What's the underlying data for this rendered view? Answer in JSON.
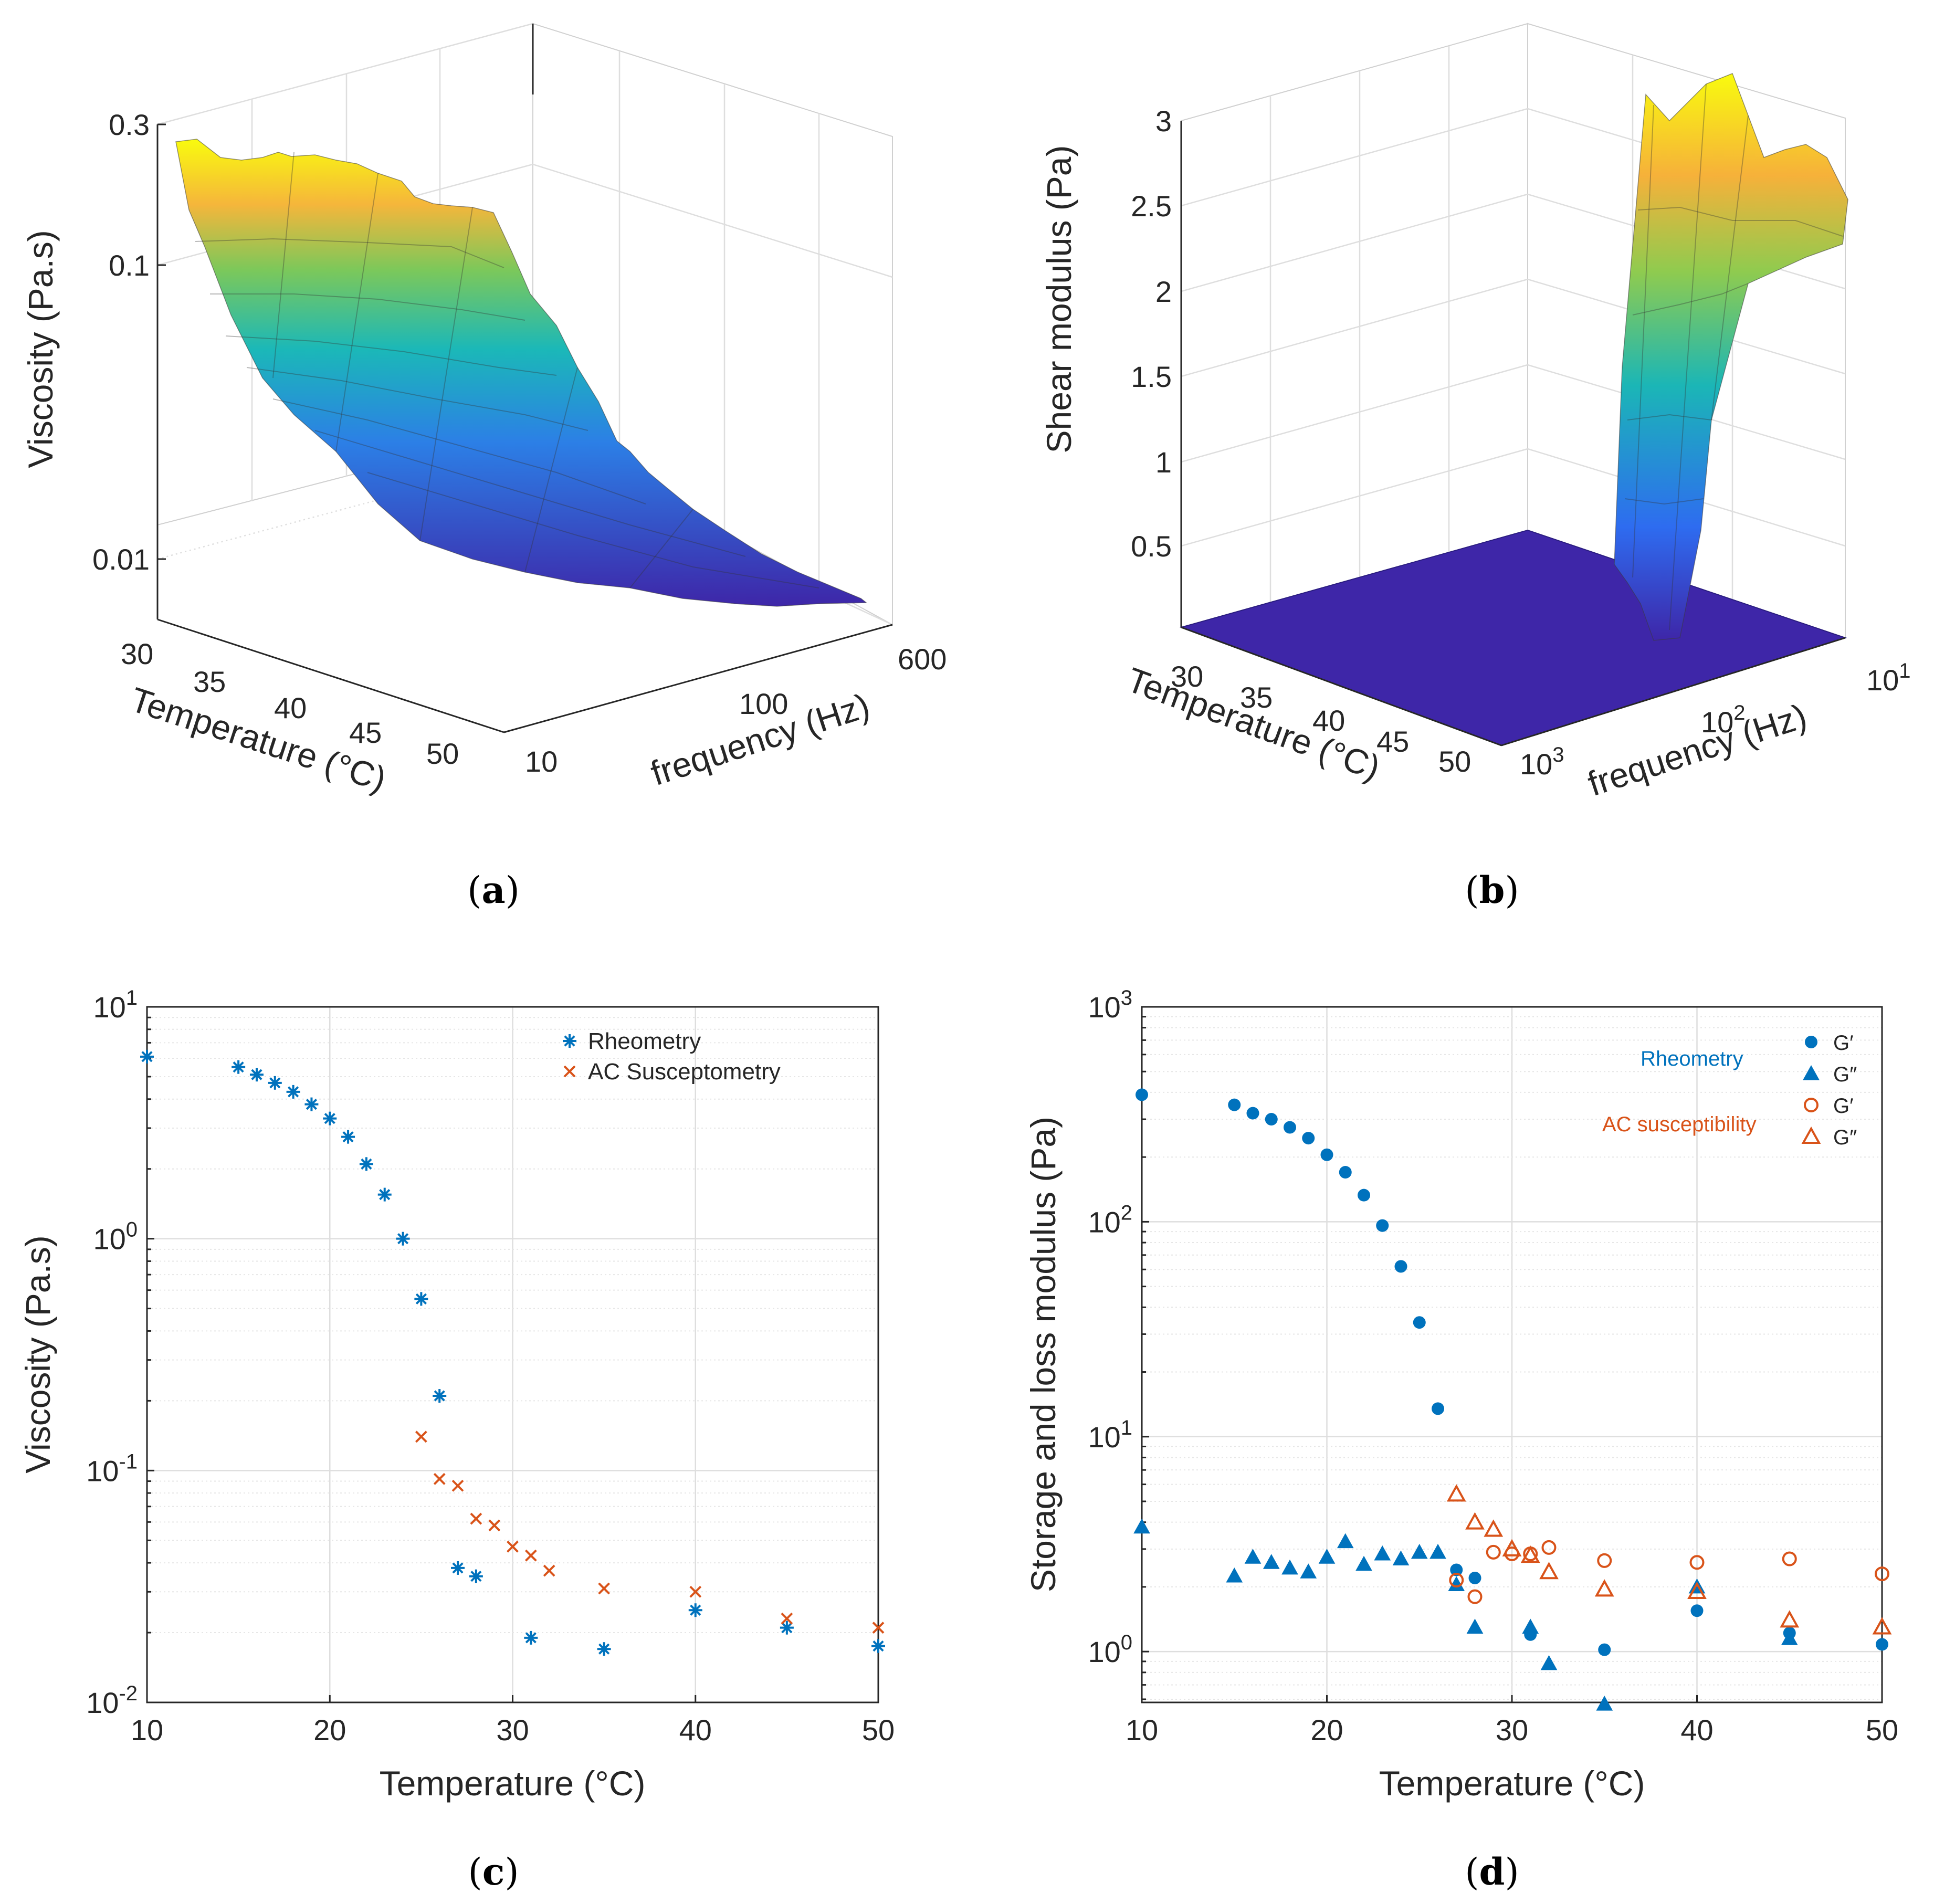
{
  "captions": {
    "a": "(a)",
    "b": "(b)",
    "c": "(c)",
    "d": "(d)"
  },
  "colors": {
    "rheometry": "#0072BD",
    "ac": "#D95319",
    "axis": "#262626",
    "surface_low": "#3E26A8",
    "surface_mid": "#21B8B6",
    "surface_high": "#F9FB0E"
  },
  "chart_data": [
    {
      "panel": "a",
      "type": "surface3d",
      "zlabel": "Viscosity (Pa.s)",
      "xlabel": "Temperature (°C)",
      "ylabel": "frequency (Hz)",
      "z_ticks": [
        "0.3",
        "0.1",
        "0.01"
      ],
      "x_ticks": [
        "30",
        "35",
        "40",
        "45",
        "50"
      ],
      "y_ticks": [
        "10",
        "100",
        "600"
      ],
      "temperature_range": [
        30,
        52
      ],
      "frequency_range": [
        10,
        600
      ],
      "viscosity_range": [
        0.007,
        0.3
      ]
    },
    {
      "panel": "b",
      "type": "surface3d",
      "zlabel": "Shear modulus (Pa)",
      "xlabel": "Temperature (°C)",
      "ylabel": "frequency (Hz)",
      "z_ticks": [
        "3",
        "2.5",
        "2",
        "1.5",
        "1",
        "0.5"
      ],
      "x_ticks": [
        "30",
        "35",
        "40",
        "45",
        "50"
      ],
      "y_ticks": [
        {
          "base": "10",
          "exp": "3"
        },
        {
          "base": "10",
          "exp": "2"
        },
        {
          "base": "10",
          "exp": "1"
        }
      ],
      "shear_modulus_range": [
        0,
        3.1
      ]
    },
    {
      "panel": "c",
      "type": "scatter",
      "xlabel": "Temperature (°C)",
      "ylabel": "Viscosity (Pa.s)",
      "yscale": "log",
      "xlim": [
        10,
        50
      ],
      "ylim": [
        0.01,
        10
      ],
      "x_ticks": [
        "10",
        "20",
        "30",
        "40",
        "50"
      ],
      "y_ticks": [
        {
          "base": "10",
          "exp": "1",
          "value": 10
        },
        {
          "base": "10",
          "exp": "0",
          "value": 1
        },
        {
          "base": "10",
          "exp": "-1",
          "value": 0.1
        },
        {
          "base": "10",
          "exp": "-2",
          "value": 0.01
        }
      ],
      "legend_position": "top-right",
      "series": [
        {
          "name": "Rheometry",
          "marker": "asterisk",
          "color": "#0072BD",
          "points": [
            [
              10,
              6.1
            ],
            [
              15,
              5.5
            ],
            [
              16,
              5.1
            ],
            [
              17,
              4.7
            ],
            [
              18,
              4.3
            ],
            [
              19,
              3.8
            ],
            [
              20,
              3.3
            ],
            [
              21,
              2.75
            ],
            [
              22,
              2.1
            ],
            [
              23,
              1.55
            ],
            [
              24,
              1.0
            ],
            [
              25,
              0.55
            ],
            [
              26,
              0.21
            ],
            [
              27,
              0.038
            ],
            [
              28,
              0.035
            ],
            [
              31,
              0.019
            ],
            [
              35,
              0.017
            ],
            [
              40,
              0.025
            ],
            [
              45,
              0.021
            ],
            [
              50,
              0.0175
            ]
          ]
        },
        {
          "name": "AC Susceptometry",
          "marker": "x",
          "color": "#D95319",
          "points": [
            [
              25,
              0.14
            ],
            [
              26,
              0.092
            ],
            [
              27,
              0.086
            ],
            [
              28,
              0.062
            ],
            [
              29,
              0.058
            ],
            [
              30,
              0.047
            ],
            [
              31,
              0.043
            ],
            [
              32,
              0.037
            ],
            [
              35,
              0.031
            ],
            [
              40,
              0.03
            ],
            [
              45,
              0.023
            ],
            [
              50,
              0.021
            ]
          ]
        }
      ]
    },
    {
      "panel": "d",
      "type": "scatter",
      "xlabel": "Temperature (°C)",
      "ylabel": "Storage and loss modulus (Pa)",
      "yscale": "log",
      "xlim": [
        10,
        50
      ],
      "ylim": [
        0.58,
        1000
      ],
      "x_ticks": [
        "10",
        "20",
        "30",
        "40",
        "50"
      ],
      "y_ticks": [
        {
          "base": "10",
          "exp": "3",
          "value": 1000
        },
        {
          "base": "10",
          "exp": "2",
          "value": 100
        },
        {
          "base": "10",
          "exp": "1",
          "value": 10
        },
        {
          "base": "10",
          "exp": "0",
          "value": 1
        }
      ],
      "group_labels": {
        "rheometry": "Rheometry",
        "ac": "AC susceptibility"
      },
      "legend_position": "top-right",
      "series": [
        {
          "name": "G′",
          "group": "Rheometry",
          "marker": "filled-circle",
          "color": "#0072BD",
          "points": [
            [
              10,
              390
            ],
            [
              15,
              350
            ],
            [
              16,
              320
            ],
            [
              17,
              300
            ],
            [
              18,
              275
            ],
            [
              19,
              245
            ],
            [
              20,
              205
            ],
            [
              21,
              170
            ],
            [
              22,
              133
            ],
            [
              23,
              96
            ],
            [
              24,
              62
            ],
            [
              25,
              34
            ],
            [
              26,
              13.5
            ],
            [
              27,
              2.4
            ],
            [
              28,
              2.2
            ],
            [
              31,
              1.2
            ],
            [
              35,
              1.02
            ],
            [
              40,
              1.55
            ],
            [
              45,
              1.22
            ],
            [
              50,
              1.08
            ]
          ]
        },
        {
          "name": "G″",
          "group": "Rheometry",
          "marker": "filled-triangle",
          "color": "#0072BD",
          "points": [
            [
              10,
              3.8
            ],
            [
              15,
              2.25
            ],
            [
              16,
              2.75
            ],
            [
              17,
              2.6
            ],
            [
              18,
              2.45
            ],
            [
              19,
              2.35
            ],
            [
              20,
              2.75
            ],
            [
              21,
              3.25
            ],
            [
              22,
              2.55
            ],
            [
              23,
              2.85
            ],
            [
              24,
              2.7
            ],
            [
              25,
              2.9
            ],
            [
              26,
              2.9
            ],
            [
              27,
              2.05
            ],
            [
              28,
              1.3
            ],
            [
              31,
              1.3
            ],
            [
              32,
              0.88
            ],
            [
              35,
              0.57
            ],
            [
              40,
              2.0
            ],
            [
              45,
              1.15
            ]
          ]
        },
        {
          "name": "G′",
          "group": "AC susceptibility",
          "marker": "open-circle",
          "color": "#D95319",
          "points": [
            [
              27,
              2.15
            ],
            [
              28,
              1.8
            ],
            [
              29,
              2.9
            ],
            [
              30,
              2.85
            ],
            [
              31,
              2.85
            ],
            [
              32,
              3.05
            ],
            [
              35,
              2.65
            ],
            [
              40,
              2.6
            ],
            [
              45,
              2.7
            ],
            [
              50,
              2.3
            ]
          ]
        },
        {
          "name": "G″",
          "group": "AC susceptibility",
          "marker": "open-triangle",
          "color": "#D95319",
          "points": [
            [
              27,
              5.4
            ],
            [
              28,
              4.0
            ],
            [
              29,
              3.7
            ],
            [
              30,
              3.0
            ],
            [
              31,
              2.8
            ],
            [
              32,
              2.35
            ],
            [
              35,
              1.95
            ],
            [
              40,
              1.9
            ],
            [
              45,
              1.4
            ],
            [
              50,
              1.3
            ]
          ]
        }
      ]
    }
  ]
}
